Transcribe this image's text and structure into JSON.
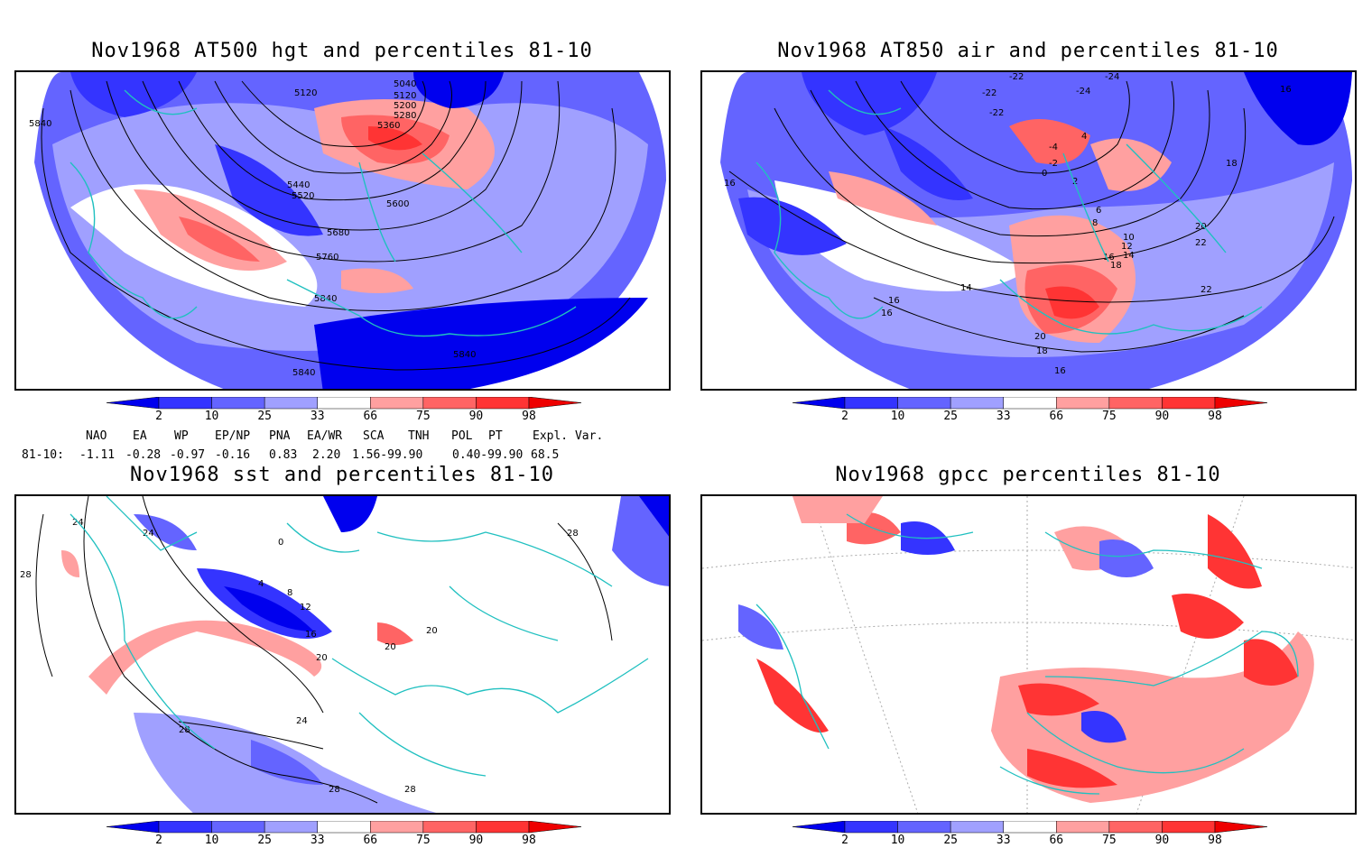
{
  "panels": [
    {
      "id": "p1",
      "title": "Nov1968 AT500 hgt and percentiles 81-10",
      "contour_labels": [
        "5840",
        "5120",
        "5040",
        "5120",
        "5200",
        "5280",
        "5360",
        "5440",
        "5520",
        "5600",
        "5680",
        "5760",
        "5840",
        "5840",
        "5840"
      ]
    },
    {
      "id": "p2",
      "title": "Nov1968 AT850 air and percentiles 81-10",
      "contour_labels": [
        "-22",
        "-24",
        "-22",
        "-24",
        "-22",
        "-4",
        "-2",
        "0",
        "2",
        "4",
        "6",
        "8",
        "10",
        "12",
        "14",
        "16",
        "18",
        "20",
        "22",
        "14",
        "16",
        "16",
        "18",
        "20",
        "16",
        "16",
        "16",
        "18",
        "22"
      ]
    },
    {
      "id": "p3",
      "title": "Nov1968 sst and percentiles 81-10",
      "contour_labels": [
        "24",
        "28",
        "24",
        "0",
        "4",
        "8",
        "12",
        "16",
        "20",
        "20",
        "20",
        "24",
        "28",
        "28",
        "28",
        "28"
      ]
    },
    {
      "id": "p4",
      "title": "Nov1968 gpcc percentiles 81-10",
      "contour_labels": []
    }
  ],
  "colorbar": {
    "ticks": [
      "2",
      "10",
      "25",
      "33",
      "66",
      "75",
      "90",
      "98"
    ],
    "colors": {
      "b1": "#0000ee",
      "b2": "#3434ff",
      "b3": "#6464ff",
      "b4": "#a0a0ff",
      "w": "#ffffff",
      "r1": "#ffa0a0",
      "r2": "#ff6464",
      "r3": "#ff3434",
      "r4": "#ee0000"
    }
  },
  "indices": {
    "headers": [
      "NAO",
      "EA",
      "WP",
      "EP/NP",
      "PNA",
      "EA/WR",
      "SCA",
      "TNH",
      "POL",
      "PT",
      "Expl. Var."
    ],
    "row_label": "81-10:",
    "values": [
      "-1.11",
      "-0.28",
      "-0.97",
      "-0.16",
      "0.83",
      "2.20",
      "1.56-99.90",
      "",
      "0.40-99.90",
      "",
      "68.5"
    ]
  },
  "map_colors": {
    "coast": "#20c0c0",
    "land_bg": "#ffffff",
    "grid": "#aaaaaa"
  }
}
